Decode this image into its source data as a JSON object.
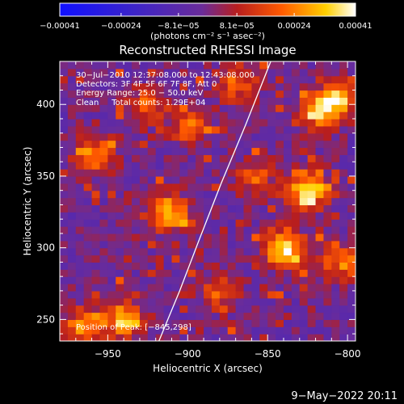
{
  "chart_data": {
    "type": "heatmap",
    "title": "Reconstructed RHESSI Image",
    "xlabel": "Heliocentric X (arcsec)",
    "ylabel": "Heliocentric Y (arcsec)",
    "xlim": [
      -980,
      -795
    ],
    "ylim": [
      235,
      430
    ],
    "x_ticks": [
      -950,
      -900,
      -850,
      -800
    ],
    "y_ticks": [
      250,
      300,
      350,
      400
    ],
    "x_tick_labels": [
      "−950",
      "−900",
      "−850",
      "−800"
    ],
    "y_tick_labels": [
      "250",
      "300",
      "350",
      "400"
    ],
    "colorbar": {
      "range": [
        -0.00041,
        0.00041
      ],
      "ticks": [
        -0.00041,
        -0.00024,
        -8.1e-05,
        8.1e-05,
        0.00024,
        0.00041
      ],
      "tick_labels": [
        "−0.00041",
        "−0.00024",
        "−8.1e−05",
        "8.1e−05",
        "0.00024",
        "0.00041"
      ],
      "unit_label": "(photons cm⁻² s⁻¹ asec⁻²)"
    },
    "annotations": [
      "30−Jul−2010 12:37:08.000 to 12:43:08.000",
      "Detectors: 3F 4F 5F 6F 7F 8F, Att 0",
      "Energy Range: 25.0 − 50.0 keV",
      "Clean     Total counts: 1.29E+04"
    ],
    "peak_label": "Position of Peak: [−845,298]",
    "limb": [
      [
        -918,
        235
      ],
      [
        -905,
        270
      ],
      [
        -893,
        305
      ],
      [
        -879,
        345
      ],
      [
        -864,
        385
      ],
      [
        -848,
        430
      ]
    ],
    "bright_sources": [
      {
        "x": -840,
        "y": 300,
        "value": 0.00041
      },
      {
        "x": -825,
        "y": 340,
        "value": 0.00036
      },
      {
        "x": -818,
        "y": 395,
        "value": 0.0003
      },
      {
        "x": -805,
        "y": 405,
        "value": 0.0003
      },
      {
        "x": -940,
        "y": 250,
        "value": 0.00032
      },
      {
        "x": -965,
        "y": 245,
        "value": 0.00028
      },
      {
        "x": -912,
        "y": 325,
        "value": 0.00034
      },
      {
        "x": -958,
        "y": 365,
        "value": 0.00027
      },
      {
        "x": -898,
        "y": 385,
        "value": 0.00022
      },
      {
        "x": -870,
        "y": 415,
        "value": 0.00022
      },
      {
        "x": -803,
        "y": 290,
        "value": 0.00025
      },
      {
        "x": -925,
        "y": 400,
        "value": 0.0002
      },
      {
        "x": -858,
        "y": 350,
        "value": 0.00018
      },
      {
        "x": -880,
        "y": 270,
        "value": 0.0002
      }
    ]
  },
  "footer_date": "9−May−2022 20:11"
}
